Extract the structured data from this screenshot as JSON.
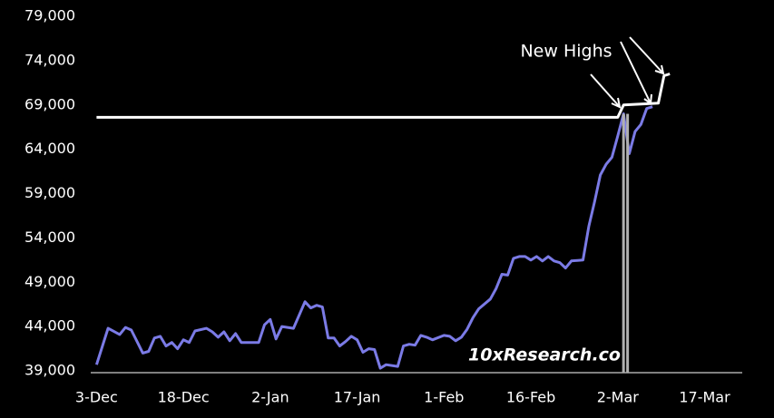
{
  "chart_data": {
    "type": "line",
    "annotation": "New Highs",
    "watermark": "10xResearch.co",
    "xlim": [
      -1,
      111.5
    ],
    "ylim": [
      39000,
      79000
    ],
    "xticks": [
      {
        "value": 0,
        "label": "3-Dec"
      },
      {
        "value": 15,
        "label": "18-Dec"
      },
      {
        "value": 30,
        "label": "2-Jan"
      },
      {
        "value": 45,
        "label": "17-Jan"
      },
      {
        "value": 60,
        "label": "1-Feb"
      },
      {
        "value": 75,
        "label": "16-Feb"
      },
      {
        "value": 90,
        "label": "2-Mar"
      },
      {
        "value": 105,
        "label": "17-Mar"
      }
    ],
    "yticks": [
      {
        "value": 39000,
        "label": "39,000"
      },
      {
        "value": 44000,
        "label": "44,000"
      },
      {
        "value": 49000,
        "label": "49,000"
      },
      {
        "value": 54000,
        "label": "54,000"
      },
      {
        "value": 59000,
        "label": "59,000"
      },
      {
        "value": 64000,
        "label": "64,000"
      },
      {
        "value": 69000,
        "label": "69,000"
      },
      {
        "value": 74000,
        "label": "74,000"
      },
      {
        "value": 79000,
        "label": "79,000"
      }
    ],
    "series": [
      {
        "color": "#7b7be6",
        "x": [
          0,
          2,
          4,
          5,
          6,
          8,
          9,
          10,
          11,
          12,
          13,
          14,
          15,
          16,
          17,
          19,
          20,
          21,
          22,
          23,
          24,
          25,
          28,
          29,
          30,
          31,
          32,
          34,
          36,
          37,
          38,
          39,
          40,
          41,
          42,
          43,
          44,
          45,
          46,
          47,
          48,
          49,
          50,
          52,
          53,
          54,
          55,
          56,
          57,
          58,
          60,
          61,
          62,
          63,
          64,
          65,
          66,
          68,
          69,
          70,
          71,
          72,
          73,
          74,
          75,
          76,
          77,
          78,
          79,
          80,
          81,
          82,
          84,
          85,
          86,
          87,
          88,
          89,
          90,
          91,
          92,
          93,
          94,
          95,
          96
        ],
        "values": [
          39700,
          43800,
          43100,
          43900,
          43600,
          41000,
          41200,
          42700,
          42900,
          41800,
          42200,
          41500,
          42500,
          42200,
          43500,
          43800,
          43400,
          42800,
          43400,
          42400,
          43200,
          42200,
          42200,
          44200,
          44800,
          42600,
          44000,
          43800,
          46800,
          46100,
          46400,
          46200,
          42700,
          42700,
          41800,
          42300,
          42900,
          42500,
          41100,
          41500,
          41400,
          39300,
          39700,
          39500,
          41800,
          42000,
          41900,
          43000,
          42800,
          42500,
          43000,
          42900,
          42400,
          42800,
          43700,
          45000,
          46000,
          47100,
          48300,
          49900,
          49800,
          51700,
          51900,
          51900,
          51500,
          51900,
          51400,
          51900,
          51400,
          51200,
          50600,
          51400,
          51500,
          55300,
          58100,
          61100,
          62300,
          63100,
          65500,
          68000,
          63500,
          66000,
          66800,
          68600,
          68800
        ]
      },
      {
        "color": "#ffffff",
        "x": [
          0,
          90,
          91,
          97,
          98,
          99
        ],
        "values": [
          67600,
          67600,
          69000,
          69200,
          72300,
          72500
        ]
      }
    ],
    "markers": {
      "color": "#b0b0b0",
      "x": [
        91,
        91.7
      ],
      "values": [
        68000,
        68000
      ]
    }
  }
}
